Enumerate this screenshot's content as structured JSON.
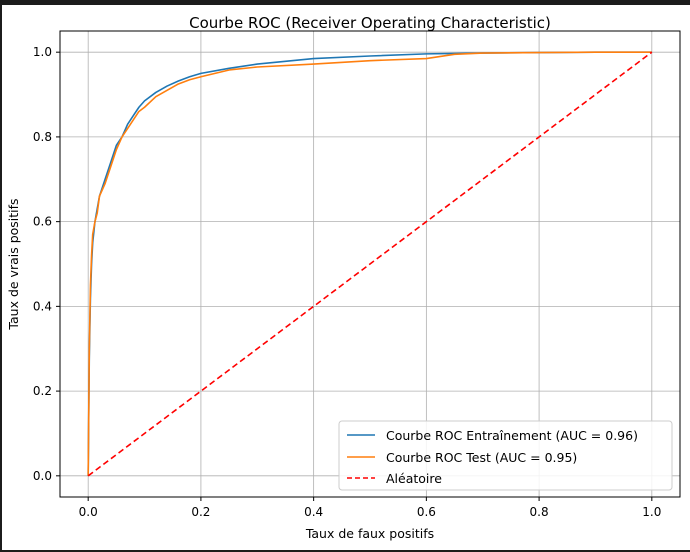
{
  "chart_data": {
    "type": "line",
    "title": "Courbe ROC (Receiver Operating Characteristic)",
    "xlabel": "Taux de faux positifs",
    "ylabel": "Taux de vrais positifs",
    "xlim": [
      -0.05,
      1.05
    ],
    "ylim": [
      -0.05,
      1.05
    ],
    "xticks": [
      "0.0",
      "0.2",
      "0.4",
      "0.6",
      "0.8",
      "1.0"
    ],
    "yticks": [
      "0.0",
      "0.2",
      "0.4",
      "0.6",
      "0.8",
      "1.0"
    ],
    "grid": true,
    "legend_position": "lower-right",
    "series": [
      {
        "name": "Courbe ROC Entraînement (AUC = 0.96)",
        "color": "#1f77b4",
        "style": "solid",
        "x": [
          0.0,
          0.002,
          0.004,
          0.006,
          0.008,
          0.012,
          0.016,
          0.02,
          0.03,
          0.04,
          0.05,
          0.06,
          0.07,
          0.08,
          0.09,
          0.1,
          0.12,
          0.14,
          0.16,
          0.18,
          0.2,
          0.25,
          0.3,
          0.4,
          0.5,
          0.6,
          0.7,
          0.8,
          0.9,
          1.0
        ],
        "y": [
          0.0,
          0.28,
          0.42,
          0.5,
          0.55,
          0.6,
          0.63,
          0.66,
          0.7,
          0.74,
          0.78,
          0.8,
          0.83,
          0.85,
          0.87,
          0.885,
          0.905,
          0.92,
          0.932,
          0.942,
          0.95,
          0.962,
          0.972,
          0.985,
          0.991,
          0.996,
          0.998,
          0.999,
          1.0,
          1.0
        ]
      },
      {
        "name": "Courbe ROC Test (AUC = 0.95)",
        "color": "#ff7f0e",
        "style": "solid",
        "x": [
          0.0,
          0.002,
          0.004,
          0.006,
          0.008,
          0.012,
          0.016,
          0.02,
          0.03,
          0.04,
          0.05,
          0.06,
          0.07,
          0.08,
          0.09,
          0.1,
          0.12,
          0.14,
          0.16,
          0.18,
          0.2,
          0.25,
          0.3,
          0.4,
          0.5,
          0.6,
          0.65,
          0.7,
          0.8,
          0.9,
          1.0
        ],
        "y": [
          0.0,
          0.3,
          0.45,
          0.52,
          0.57,
          0.6,
          0.62,
          0.66,
          0.69,
          0.73,
          0.77,
          0.8,
          0.82,
          0.84,
          0.86,
          0.87,
          0.895,
          0.91,
          0.925,
          0.935,
          0.942,
          0.958,
          0.965,
          0.972,
          0.98,
          0.985,
          0.995,
          0.998,
          0.999,
          1.0,
          1.0
        ]
      },
      {
        "name": "Aléatoire",
        "color": "#ff0000",
        "style": "dashed",
        "x": [
          0.0,
          1.0
        ],
        "y": [
          0.0,
          1.0
        ]
      }
    ]
  }
}
